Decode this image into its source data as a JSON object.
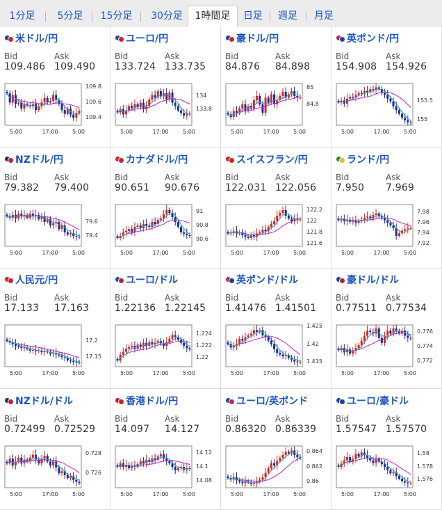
{
  "colors": {
    "up": "#e0221e",
    "down": "#1b2b9c",
    "ma_long": "#c51fcd",
    "ma_short": "#27a3b4",
    "link": "#1a55c8"
  },
  "tabs": [
    {
      "label": "1分足",
      "active": false
    },
    {
      "label": "5分足",
      "active": false
    },
    {
      "label": "15分足",
      "active": false
    },
    {
      "label": "30分足",
      "active": false
    },
    {
      "label": "1時間足",
      "active": true
    },
    {
      "label": "日足",
      "active": false
    },
    {
      "label": "週足",
      "active": false
    },
    {
      "label": "月足",
      "active": false
    }
  ],
  "labels": {
    "bid": "Bid",
    "ask": "Ask"
  },
  "pairs": [
    {
      "name": "米ドル/円",
      "flag": [
        "#1b3f9c",
        "#d21f2b"
      ],
      "bid": "109.486",
      "ask": "109.490",
      "chart": {
        "y_ticks": [
          "109.8",
          "109.6",
          "109.4"
        ],
        "ylim": [
          109.3,
          109.85
        ],
        "x_ticks": [
          "5:00",
          "17:00",
          "5:00"
        ],
        "close": [
          109.72,
          109.6,
          109.7,
          109.58,
          109.6,
          109.52,
          109.58,
          109.56,
          109.55,
          109.58,
          109.5,
          109.55,
          109.6,
          109.66,
          109.6,
          109.62,
          109.7,
          109.63,
          109.58,
          109.5,
          109.45,
          109.52,
          109.44,
          109.4,
          109.46,
          109.49
        ]
      }
    },
    {
      "name": "ユーロ/円",
      "flag": [
        "#2046b0",
        "#d21f2b"
      ],
      "bid": "133.724",
      "ask": "133.735",
      "chart": {
        "y_ticks": [
          "134",
          "133.8"
        ],
        "ylim": [
          133.55,
          134.2
        ],
        "x_ticks": [
          "5:00",
          "17:00",
          "5:00"
        ],
        "close": [
          133.75,
          133.8,
          133.72,
          133.78,
          133.85,
          133.82,
          133.88,
          133.83,
          133.9,
          133.8,
          133.85,
          133.95,
          134.02,
          133.98,
          134.08,
          134.0,
          134.05,
          133.95,
          134.06,
          133.9,
          133.85,
          133.78,
          133.74,
          133.7,
          133.73,
          133.72
        ]
      }
    },
    {
      "name": "豪ドル/円",
      "flag": [
        "#1b3f9c",
        "#d21f2b"
      ],
      "bid": "84.876",
      "ask": "84.898",
      "chart": {
        "y_ticks": [
          "85",
          "84.8"
        ],
        "ylim": [
          84.55,
          85.05
        ],
        "x_ticks": [
          "5:00",
          "17:00",
          "5:00"
        ],
        "close": [
          84.68,
          84.65,
          84.72,
          84.7,
          84.75,
          84.8,
          84.72,
          84.78,
          84.75,
          84.85,
          84.9,
          84.8,
          84.7,
          84.88,
          84.82,
          84.92,
          84.8,
          84.85,
          84.9,
          84.95,
          84.88,
          84.92,
          84.96,
          84.9,
          84.88,
          84.88
        ]
      }
    },
    {
      "name": "英ポンド/円",
      "flag": [
        "#c2254a",
        "#2046b0"
      ],
      "bid": "154.908",
      "ask": "154.926",
      "chart": {
        "y_ticks": [
          "155.5",
          "155"
        ],
        "ylim": [
          154.85,
          155.95
        ],
        "x_ticks": [
          "5:00",
          "17:00",
          "5:00"
        ],
        "close": [
          155.45,
          155.5,
          155.42,
          155.55,
          155.6,
          155.58,
          155.65,
          155.7,
          155.68,
          155.75,
          155.72,
          155.8,
          155.78,
          155.85,
          155.8,
          155.7,
          155.65,
          155.55,
          155.48,
          155.35,
          155.25,
          155.15,
          155.05,
          154.98,
          154.93,
          154.91
        ]
      }
    },
    {
      "name": "NZドル/円",
      "flag": [
        "#1b2b7c",
        "#d21f2b"
      ],
      "bid": "79.382",
      "ask": "79.400",
      "chart": {
        "y_ticks": [
          "79.6",
          "79.4"
        ],
        "ylim": [
          79.25,
          79.85
        ],
        "x_ticks": [
          "5:00",
          "17:00",
          "5:00"
        ],
        "close": [
          79.68,
          79.66,
          79.7,
          79.65,
          79.72,
          79.68,
          79.7,
          79.66,
          79.72,
          79.68,
          79.7,
          79.64,
          79.68,
          79.6,
          79.64,
          79.55,
          79.58,
          79.6,
          79.5,
          79.55,
          79.45,
          79.42,
          79.44,
          79.4,
          79.39,
          79.38
        ]
      }
    },
    {
      "name": "カナダドル/円",
      "flag": [
        "#d21f2b",
        "#d21f2b"
      ],
      "bid": "90.651",
      "ask": "90.676",
      "chart": {
        "y_ticks": [
          "91",
          "90.8",
          "90.6"
        ],
        "ylim": [
          90.5,
          91.1
        ],
        "x_ticks": [
          "5:00",
          "17:00",
          "5:00"
        ],
        "close": [
          90.62,
          90.65,
          90.7,
          90.72,
          90.75,
          90.7,
          90.78,
          90.8,
          90.76,
          90.82,
          90.8,
          90.78,
          90.85,
          90.82,
          90.88,
          90.9,
          90.96,
          91.02,
          90.98,
          90.92,
          90.85,
          90.78,
          90.7,
          90.68,
          90.66,
          90.65
        ]
      }
    },
    {
      "name": "スイスフラン/円",
      "flag": [
        "#d21f2b",
        "#d21f2b"
      ],
      "bid": "122.031",
      "ask": "122.056",
      "chart": {
        "y_ticks": [
          "122.2",
          "122",
          "121.8",
          "121.6"
        ],
        "ylim": [
          121.55,
          122.3
        ],
        "x_ticks": [
          "5:00",
          "17:00",
          "5:00"
        ],
        "close": [
          121.78,
          121.8,
          121.82,
          121.78,
          121.8,
          121.75,
          121.72,
          121.7,
          121.75,
          121.72,
          121.78,
          121.8,
          121.85,
          121.82,
          121.9,
          121.95,
          122.0,
          122.1,
          122.15,
          122.2,
          122.1,
          122.05,
          122.0,
          122.05,
          122.03,
          122.03
        ]
      }
    },
    {
      "name": "ランド/円",
      "flag": [
        "#1c8a3c",
        "#f2b41c"
      ],
      "bid": "7.950",
      "ask": "7.969",
      "chart": {
        "y_ticks": [
          "7.98",
          "7.96",
          "7.94",
          "7.92"
        ],
        "ylim": [
          7.915,
          7.995
        ],
        "x_ticks": [
          "5:00",
          "17:00",
          "5:00"
        ],
        "close": [
          7.965,
          7.968,
          7.963,
          7.966,
          7.962,
          7.965,
          7.96,
          7.964,
          7.966,
          7.97,
          7.972,
          7.968,
          7.975,
          7.978,
          7.972,
          7.97,
          7.965,
          7.96,
          7.955,
          7.95,
          7.935,
          7.94,
          7.945,
          7.948,
          7.95,
          7.95
        ]
      }
    },
    {
      "name": "人民元/円",
      "flag": [
        "#d21f2b",
        "#d21f2b"
      ],
      "bid": "17.133",
      "ask": "17.163",
      "chart": {
        "y_ticks": [
          "17.2",
          "17.15"
        ],
        "ylim": [
          17.12,
          17.25
        ],
        "x_ticks": [
          "5:00",
          "17:00",
          "5:00"
        ],
        "close": [
          17.2,
          17.195,
          17.19,
          17.185,
          17.182,
          17.178,
          17.18,
          17.175,
          17.17,
          17.172,
          17.168,
          17.17,
          17.165,
          17.168,
          17.165,
          17.16,
          17.162,
          17.158,
          17.155,
          17.15,
          17.148,
          17.14,
          17.138,
          17.135,
          17.134,
          17.133
        ]
      }
    },
    {
      "name": "ユーロ/ドル",
      "flag": [
        "#2046b0",
        "#b8233a"
      ],
      "bid": "1.22136",
      "ask": "1.22145",
      "chart": {
        "y_ticks": [
          "1.224",
          "1.222",
          "1.22"
        ],
        "ylim": [
          1.2185,
          1.2255
        ],
        "x_ticks": [
          "5:00",
          "17:00",
          "5:00"
        ],
        "close": [
          1.2195,
          1.2205,
          1.221,
          1.2215,
          1.2218,
          1.222,
          1.2215,
          1.2222,
          1.2218,
          1.2225,
          1.222,
          1.2226,
          1.2222,
          1.2225,
          1.2228,
          1.2224,
          1.222,
          1.2226,
          1.2232,
          1.2238,
          1.2235,
          1.223,
          1.2225,
          1.222,
          1.2216,
          1.2214
        ]
      }
    },
    {
      "name": "英ポンド/ドル",
      "flag": [
        "#c2254a",
        "#1b3f9c"
      ],
      "bid": "1.41476",
      "ask": "1.41501",
      "chart": {
        "y_ticks": [
          "1.425",
          "1.42",
          "1.415"
        ],
        "ylim": [
          1.4135,
          1.4255
        ],
        "x_ticks": [
          "5:00",
          "17:00",
          "5:00"
        ],
        "close": [
          1.42,
          1.419,
          1.4195,
          1.42,
          1.4215,
          1.421,
          1.422,
          1.4225,
          1.423,
          1.424,
          1.4235,
          1.424,
          1.4225,
          1.422,
          1.421,
          1.42,
          1.4185,
          1.4175,
          1.417,
          1.4165,
          1.4168,
          1.416,
          1.4155,
          1.415,
          1.4148,
          1.4148
        ]
      }
    },
    {
      "name": "豪ドル/ドル",
      "flag": [
        "#1b3f9c",
        "#b8233a"
      ],
      "bid": "0.77511",
      "ask": "0.77534",
      "chart": {
        "y_ticks": [
          "0.776",
          "0.774",
          "0.772"
        ],
        "ylim": [
          0.7712,
          0.777
        ],
        "x_ticks": [
          "5:00",
          "17:00",
          "5:00"
        ],
        "close": [
          0.7735,
          0.7738,
          0.7732,
          0.7736,
          0.773,
          0.7734,
          0.7738,
          0.7742,
          0.7748,
          0.7755,
          0.7762,
          0.776,
          0.7758,
          0.7765,
          0.7752,
          0.7745,
          0.7755,
          0.7762,
          0.7758,
          0.7765,
          0.7762,
          0.7758,
          0.7762,
          0.7755,
          0.7752,
          0.7751
        ]
      }
    },
    {
      "name": "NZドル/ドル",
      "flag": [
        "#1b2b7c",
        "#b8233a"
      ],
      "bid": "0.72499",
      "ask": "0.72529",
      "chart": {
        "y_ticks": [
          "0.728",
          "0.726"
        ],
        "ylim": [
          0.7245,
          0.7288
        ],
        "x_ticks": [
          "5:00",
          "17:00",
          "5:00"
        ],
        "close": [
          0.727,
          0.7275,
          0.7268,
          0.7272,
          0.7276,
          0.727,
          0.7274,
          0.7272,
          0.7276,
          0.7279,
          0.7274,
          0.727,
          0.7275,
          0.7278,
          0.7272,
          0.7268,
          0.7272,
          0.7266,
          0.726,
          0.7262,
          0.7258,
          0.7255,
          0.7257,
          0.7253,
          0.7251,
          0.725
        ]
      }
    },
    {
      "name": "香港ドル/円",
      "flag": [
        "#d21f2b",
        "#d21f2b"
      ],
      "bid": "14.097",
      "ask": "14.127",
      "chart": {
        "y_ticks": [
          "14.12",
          "14.1",
          "14.08"
        ],
        "ylim": [
          14.07,
          14.13
        ],
        "x_ticks": [
          "5:00",
          "17:00",
          "5:00"
        ],
        "close": [
          14.1,
          14.105,
          14.1,
          14.103,
          14.098,
          14.102,
          14.1,
          14.104,
          14.108,
          14.105,
          14.11,
          14.107,
          14.112,
          14.11,
          14.115,
          14.118,
          14.112,
          14.108,
          14.105,
          14.1,
          14.095,
          14.098,
          14.1,
          14.096,
          14.098,
          14.097
        ]
      }
    },
    {
      "name": "ユーロ/英ポンド",
      "flag": [
        "#2046b0",
        "#c2254a"
      ],
      "bid": "0.86320",
      "ask": "0.86339",
      "chart": {
        "y_ticks": [
          "0.864",
          "0.862",
          "0.86"
        ],
        "ylim": [
          0.8592,
          0.8648
        ],
        "x_ticks": [
          "5:00",
          "17:00",
          "5:00"
        ],
        "close": [
          0.8605,
          0.8603,
          0.8606,
          0.8602,
          0.86,
          0.8598,
          0.8601,
          0.8599,
          0.8597,
          0.8598,
          0.86,
          0.8603,
          0.8606,
          0.8612,
          0.8618,
          0.8625,
          0.8622,
          0.8628,
          0.8632,
          0.8636,
          0.864,
          0.8638,
          0.8642,
          0.8636,
          0.8633,
          0.8632
        ]
      }
    },
    {
      "name": "ユーロ/豪ドル",
      "flag": [
        "#2046b0",
        "#1b3f9c"
      ],
      "bid": "1.57547",
      "ask": "1.57570",
      "chart": {
        "y_ticks": [
          "1.58",
          "1.578",
          "1.576"
        ],
        "ylim": [
          1.5748,
          1.5812
        ],
        "x_ticks": [
          "5:00",
          "17:00",
          "5:00"
        ],
        "close": [
          1.578,
          1.5785,
          1.579,
          1.5795,
          1.5788,
          1.5792,
          1.58,
          1.5796,
          1.5802,
          1.5798,
          1.5794,
          1.579,
          1.5786,
          1.5792,
          1.5788,
          1.5784,
          1.578,
          1.5775,
          1.577,
          1.5772,
          1.5766,
          1.5762,
          1.5758,
          1.5756,
          1.5755,
          1.5755
        ]
      }
    }
  ]
}
